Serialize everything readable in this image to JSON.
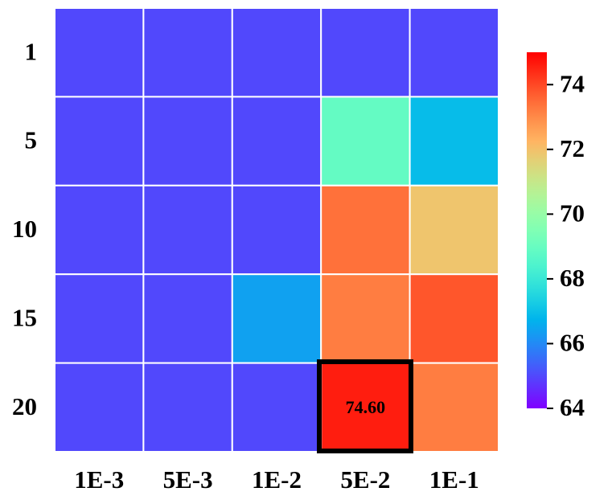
{
  "chart_data": {
    "type": "heatmap",
    "x": [
      "1E-3",
      "5E-3",
      "1E-2",
      "5E-2",
      "1E-1"
    ],
    "y": [
      "1",
      "5",
      "10",
      "15",
      "20"
    ],
    "values": [
      [
        65.0,
        65.0,
        65.0,
        65.0,
        65.0
      ],
      [
        65.0,
        65.0,
        65.0,
        68.9,
        66.9
      ],
      [
        65.0,
        65.0,
        65.0,
        73.4,
        71.9
      ],
      [
        65.0,
        65.0,
        66.4,
        73.2,
        73.8
      ],
      [
        65.0,
        65.0,
        65.0,
        74.6,
        73.2
      ]
    ],
    "value_labels": [
      [
        null,
        null,
        null,
        null,
        null
      ],
      [
        null,
        null,
        null,
        null,
        null
      ],
      [
        null,
        null,
        null,
        null,
        null
      ],
      [
        null,
        null,
        null,
        null,
        null
      ],
      [
        null,
        null,
        null,
        "74.60",
        null
      ]
    ],
    "colormap": "rainbow",
    "clim": [
      64,
      75
    ],
    "cticks": [
      64,
      66,
      68,
      70,
      72,
      74
    ]
  }
}
